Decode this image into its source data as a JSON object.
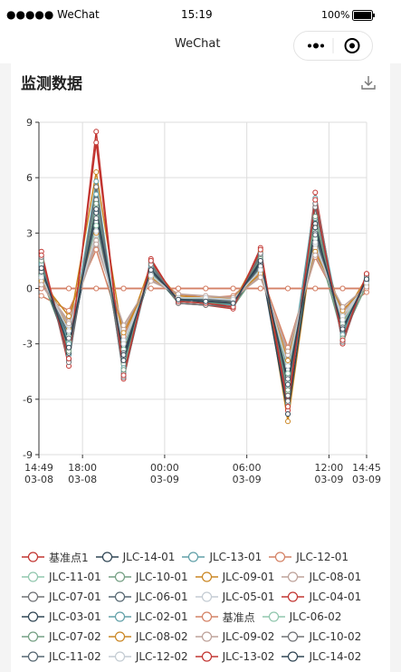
{
  "status_bar": {
    "carrier": "●●●●● WeChat",
    "time": "15:19",
    "battery": "100%"
  },
  "nav": {
    "title": "WeChat"
  },
  "page_title": "监测数据",
  "chart_data": {
    "type": "line",
    "legend": "bottom",
    "grid": true,
    "x": [
      "03-08 15:00",
      "03-08 17:00",
      "03-08 19:00",
      "03-08 21:00",
      "03-08 23:00",
      "03-09 01:00",
      "03-09 03:00",
      "03-09 05:00",
      "03-09 07:00",
      "03-09 09:00",
      "03-09 11:00",
      "03-09 13:00",
      "03-09 14:45"
    ],
    "xlim": [
      "03-08 14:49",
      "03-09 14:45"
    ],
    "xticks": [
      {
        "value": "03-08 14:49",
        "label": "14:49\n03-08"
      },
      {
        "value": "03-08 18:00",
        "label": "18:00\n03-08"
      },
      {
        "value": "03-09 00:00",
        "label": "00:00\n03-09"
      },
      {
        "value": "03-09 06:00",
        "label": "06:00\n03-09"
      },
      {
        "value": "03-09 12:00",
        "label": "12:00\n03-09"
      },
      {
        "value": "03-09 14:45",
        "label": "14:45\n03-09"
      }
    ],
    "ylim": [
      -9,
      9
    ],
    "yticks": [
      -9,
      -6,
      -3,
      0,
      3,
      6,
      9
    ],
    "series": [
      {
        "name": "基准点1",
        "color": "#c23531",
        "values": [
          0,
          0,
          0,
          0,
          0,
          0,
          0,
          0,
          0,
          0,
          0,
          0,
          0
        ]
      },
      {
        "name": "JLC-14-01",
        "color": "#2f4554",
        "values": [
          0.8,
          -2.5,
          3.2,
          -3.1,
          0.9,
          -0.5,
          -0.8,
          -0.9,
          1.2,
          -4.4,
          2.6,
          -1.8,
          0.3
        ]
      },
      {
        "name": "JLC-13-01",
        "color": "#61a0a8",
        "values": [
          1.4,
          -3.6,
          5.8,
          -4.5,
          1.2,
          -0.7,
          -0.6,
          -0.7,
          1.8,
          -6.2,
          3.8,
          -2.4,
          0.6
        ]
      },
      {
        "name": "JLC-12-01",
        "color": "#d48265",
        "values": [
          -0.4,
          -1.2,
          2.1,
          -2.6,
          0.6,
          -0.3,
          -0.5,
          -0.4,
          0.9,
          -3.2,
          1.7,
          -1.1,
          -0.2
        ]
      },
      {
        "name": "JLC-11-01",
        "color": "#91c7ae",
        "values": [
          1.1,
          -2.9,
          4.4,
          -3.8,
          0.8,
          -0.6,
          -0.7,
          -0.6,
          1.4,
          -5.1,
          3.1,
          -2.0,
          0.5
        ]
      },
      {
        "name": "JLC-10-01",
        "color": "#749f83",
        "values": [
          0.6,
          -3.3,
          3.9,
          -4.1,
          1.0,
          -0.8,
          -0.9,
          -1.0,
          1.1,
          -5.6,
          2.8,
          -2.6,
          0.2
        ]
      },
      {
        "name": "JLC-09-01",
        "color": "#ca8622",
        "values": [
          0.9,
          -2.2,
          6.3,
          -2.9,
          1.3,
          -0.5,
          -0.6,
          -0.8,
          2.0,
          -7.2,
          3.4,
          -1.6,
          0.6
        ]
      },
      {
        "name": "JLC-08-01",
        "color": "#bda29a",
        "values": [
          0.3,
          -1.8,
          2.6,
          -2.2,
          0.5,
          -0.4,
          -0.5,
          -0.6,
          0.7,
          -3.6,
          2.2,
          -1.3,
          0.1
        ]
      },
      {
        "name": "JLC-07-01",
        "color": "#6e7074",
        "values": [
          1.6,
          -3.9,
          4.8,
          -4.6,
          1.5,
          -0.7,
          -0.8,
          -0.9,
          1.7,
          -5.8,
          4.4,
          -2.8,
          0.7
        ]
      },
      {
        "name": "JLC-06-01",
        "color": "#546570",
        "values": [
          1.2,
          -3.1,
          3.6,
          -3.7,
          1.1,
          -0.6,
          -0.7,
          -0.7,
          1.3,
          -4.8,
          3.0,
          -2.2,
          0.4
        ]
      },
      {
        "name": "JLC-05-01",
        "color": "#c4ccd3",
        "values": [
          0.5,
          -2.0,
          2.9,
          -2.8,
          0.7,
          -0.5,
          -0.6,
          -0.6,
          1.0,
          -4.0,
          2.4,
          -1.5,
          0.3
        ]
      },
      {
        "name": "JLC-04-01",
        "color": "#c23531",
        "values": [
          2.0,
          -4.2,
          8.5,
          -4.9,
          1.6,
          -0.8,
          -0.9,
          -1.1,
          2.2,
          -6.6,
          5.2,
          -3.0,
          0.8
        ]
      },
      {
        "name": "JLC-03-01",
        "color": "#2f4554",
        "values": [
          1.0,
          -3.5,
          4.1,
          -3.9,
          0.9,
          -0.7,
          -0.8,
          -0.8,
          1.4,
          -6.8,
          3.5,
          -2.3,
          0.5
        ]
      },
      {
        "name": "JLC-02-01",
        "color": "#61a0a8",
        "values": [
          1.3,
          -3.0,
          5.1,
          -4.3,
          1.2,
          -0.6,
          -0.7,
          -0.9,
          1.6,
          -5.3,
          4.9,
          -2.5,
          0.6
        ]
      },
      {
        "name": "基准点",
        "color": "#d48265",
        "values": [
          0,
          0,
          0,
          0,
          0,
          0,
          0,
          0,
          0,
          0,
          0,
          0,
          0
        ]
      },
      {
        "name": "JLC-06-02",
        "color": "#91c7ae",
        "values": [
          0.7,
          -2.6,
          3.4,
          -3.3,
          0.8,
          -0.5,
          -0.6,
          -0.7,
          1.1,
          -4.6,
          2.7,
          -1.9,
          0.3
        ]
      },
      {
        "name": "JLC-07-02",
        "color": "#749f83",
        "values": [
          1.5,
          -3.4,
          4.6,
          -4.4,
          1.4,
          -0.7,
          -0.8,
          -0.8,
          1.6,
          -5.5,
          3.9,
          -2.7,
          0.6
        ]
      },
      {
        "name": "JLC-08-02",
        "color": "#ca8622",
        "values": [
          0.4,
          -1.5,
          3.0,
          -2.4,
          0.6,
          -0.4,
          -0.5,
          -0.5,
          0.8,
          -3.9,
          2.0,
          -1.2,
          0.2
        ]
      },
      {
        "name": "JLC-09-02",
        "color": "#bda29a",
        "values": [
          0.2,
          -1.9,
          2.4,
          -2.0,
          0.4,
          -0.3,
          -0.4,
          -0.5,
          0.6,
          -3.4,
          1.8,
          -1.0,
          0.1
        ]
      },
      {
        "name": "JLC-10-02",
        "color": "#6e7074",
        "values": [
          1.7,
          -4.0,
          5.5,
          -4.8,
          1.3,
          -0.8,
          -0.9,
          -1.0,
          1.9,
          -6.1,
          4.6,
          -2.9,
          0.7
        ]
      },
      {
        "name": "JLC-11-02",
        "color": "#546570",
        "values": [
          0.9,
          -2.7,
          3.8,
          -3.5,
          0.9,
          -0.6,
          -0.6,
          -0.7,
          1.2,
          -4.9,
          2.9,
          -2.1,
          0.4
        ]
      },
      {
        "name": "JLC-12-02",
        "color": "#c4ccd3",
        "values": [
          0.6,
          -2.3,
          3.1,
          -3.0,
          0.7,
          -0.5,
          -0.5,
          -0.6,
          1.0,
          -4.2,
          2.5,
          -1.7,
          0.3
        ]
      },
      {
        "name": "JLC-13-02",
        "color": "#c23531",
        "values": [
          1.8,
          -3.8,
          7.9,
          -4.7,
          1.5,
          -0.7,
          -0.8,
          -1.0,
          2.1,
          -6.4,
          4.8,
          -2.8,
          0.8
        ]
      },
      {
        "name": "JLC-14-02",
        "color": "#2f4554",
        "values": [
          1.1,
          -3.2,
          4.3,
          -3.6,
          1.0,
          -0.6,
          -0.7,
          -0.8,
          1.5,
          -5.2,
          3.3,
          -2.2,
          0.5
        ]
      }
    ]
  }
}
